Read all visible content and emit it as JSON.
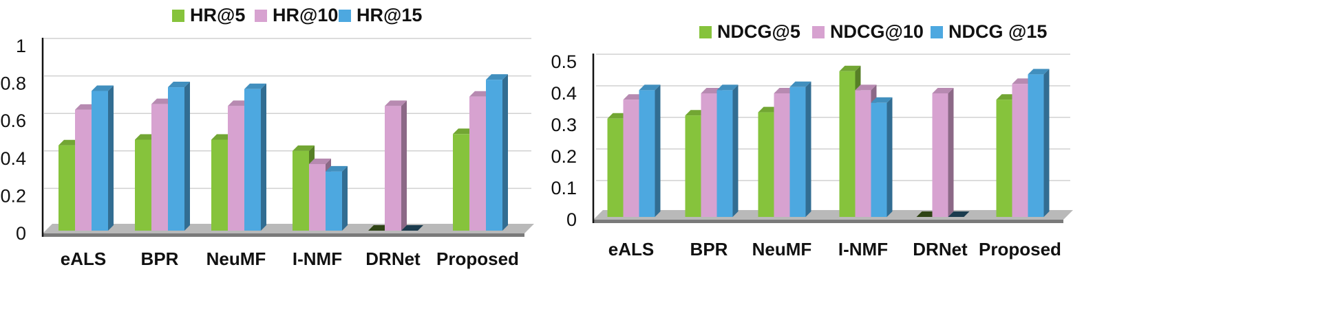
{
  "chart_data": [
    {
      "type": "bar",
      "categories": [
        "eALS",
        "BPR",
        "NeuMF",
        "I-NMF",
        "DRNet",
        "Proposed"
      ],
      "series": [
        {
          "name": "HR@5",
          "color": "#86c33c",
          "values": [
            0.47,
            0.5,
            0.5,
            0.44,
            0.0,
            0.53
          ]
        },
        {
          "name": "HR@10",
          "color": "#d7a2d0",
          "values": [
            0.66,
            0.69,
            0.68,
            0.37,
            0.68,
            0.73
          ]
        },
        {
          "name": "HR@15",
          "color": "#4da8e0",
          "values": [
            0.76,
            0.78,
            0.77,
            0.33,
            0.0,
            0.82
          ]
        }
      ],
      "yticks": [
        "0",
        "0.2",
        "0.4",
        "0.6",
        "0.8",
        "1"
      ],
      "ylim": [
        0,
        1
      ],
      "grid": true,
      "legend": "top"
    },
    {
      "type": "bar",
      "categories": [
        "eALS",
        "BPR",
        "NeuMF",
        "I-NMF",
        "DRNet",
        "Proposed"
      ],
      "series": [
        {
          "name": "NDCG@5",
          "color": "#86c33c",
          "values": [
            0.32,
            0.33,
            0.34,
            0.47,
            0.0,
            0.38
          ]
        },
        {
          "name": "NDCG@10",
          "color": "#d7a2d0",
          "values": [
            0.38,
            0.4,
            0.4,
            0.41,
            0.4,
            0.43
          ]
        },
        {
          "name": "NDCG @15",
          "color": "#4da8e0",
          "values": [
            0.41,
            0.41,
            0.42,
            0.37,
            0.0,
            0.46
          ]
        }
      ],
      "yticks": [
        "0",
        "0.1",
        "0.2",
        "0.3",
        "0.4",
        "0.5"
      ],
      "ylim": [
        0,
        0.5
      ],
      "grid": true,
      "legend": "top"
    }
  ]
}
